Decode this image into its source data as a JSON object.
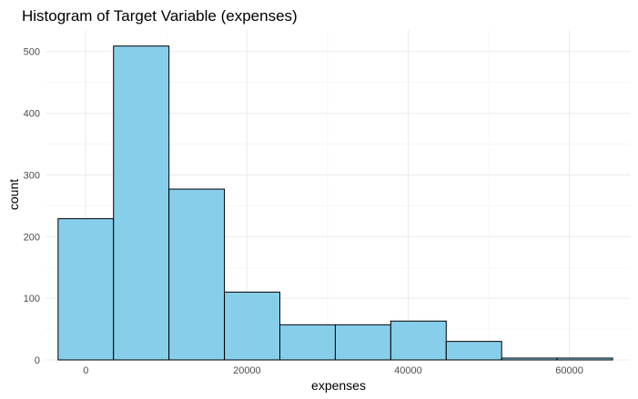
{
  "chart_data": {
    "type": "bar",
    "title": "Histogram of Target Variable (expenses)",
    "xlabel": "expenses",
    "ylabel": "count",
    "bins": [
      {
        "start": -3440,
        "end": 3440,
        "count": 229
      },
      {
        "start": 3440,
        "end": 10320,
        "count": 509
      },
      {
        "start": 10320,
        "end": 17200,
        "count": 277
      },
      {
        "start": 17200,
        "end": 24080,
        "count": 110
      },
      {
        "start": 24080,
        "end": 30960,
        "count": 57
      },
      {
        "start": 30960,
        "end": 37840,
        "count": 57
      },
      {
        "start": 37840,
        "end": 44720,
        "count": 63
      },
      {
        "start": 44720,
        "end": 51600,
        "count": 30
      },
      {
        "start": 51600,
        "end": 58480,
        "count": 3
      },
      {
        "start": 58480,
        "end": 65360,
        "count": 3
      }
    ],
    "xlim": [
      -5000,
      67500
    ],
    "ylim": [
      0,
      535
    ],
    "x_ticks": [
      0,
      20000,
      40000,
      60000
    ],
    "x_tick_labels": [
      "0",
      "20000",
      "40000",
      "60000"
    ],
    "y_ticks": [
      0,
      100,
      200,
      300,
      400,
      500
    ],
    "y_tick_labels": [
      "0",
      "100",
      "200",
      "300",
      "400",
      "500"
    ],
    "grid": true,
    "legend": "none",
    "colors": {
      "fill": "#87CEEB",
      "stroke": "#000000"
    }
  }
}
